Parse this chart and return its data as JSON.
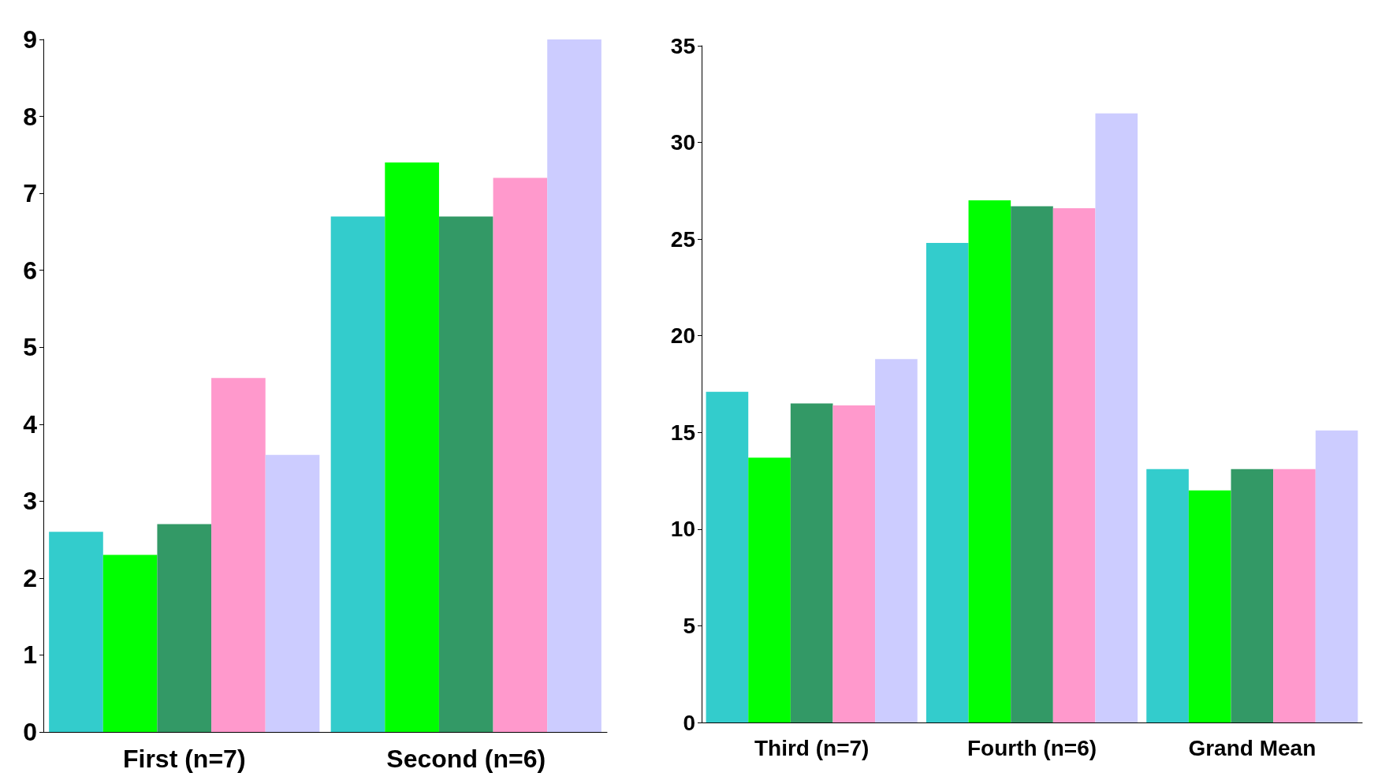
{
  "chart_data": [
    {
      "type": "bar",
      "categories": [
        "First (n=7)",
        "Second (n=6)"
      ],
      "ylim": [
        0,
        9
      ],
      "yticks": [
        0,
        1,
        2,
        3,
        4,
        5,
        6,
        7,
        8,
        9
      ],
      "series": [
        {
          "color": "#33cccc",
          "values": [
            2.6,
            6.7
          ]
        },
        {
          "color": "#00ff00",
          "values": [
            2.3,
            7.4
          ]
        },
        {
          "color": "#339966",
          "values": [
            2.7,
            6.7
          ]
        },
        {
          "color": "#ff99cc",
          "values": [
            4.6,
            7.2
          ]
        },
        {
          "color": "#ccccff",
          "values": [
            3.6,
            9.0
          ]
        }
      ]
    },
    {
      "type": "bar",
      "categories": [
        "Third (n=7)",
        "Fourth (n=6)",
        "Grand Mean"
      ],
      "ylim": [
        0,
        35
      ],
      "yticks": [
        0,
        5,
        10,
        15,
        20,
        25,
        30,
        35
      ],
      "series": [
        {
          "color": "#33cccc",
          "values": [
            17.1,
            24.8,
            13.1
          ]
        },
        {
          "color": "#00ff00",
          "values": [
            13.7,
            27.0,
            12.0
          ]
        },
        {
          "color": "#339966",
          "values": [
            16.5,
            26.7,
            13.1
          ]
        },
        {
          "color": "#ff99cc",
          "values": [
            16.4,
            26.6,
            13.1
          ]
        },
        {
          "color": "#ccccff",
          "values": [
            18.8,
            31.5,
            15.1
          ]
        }
      ]
    }
  ]
}
